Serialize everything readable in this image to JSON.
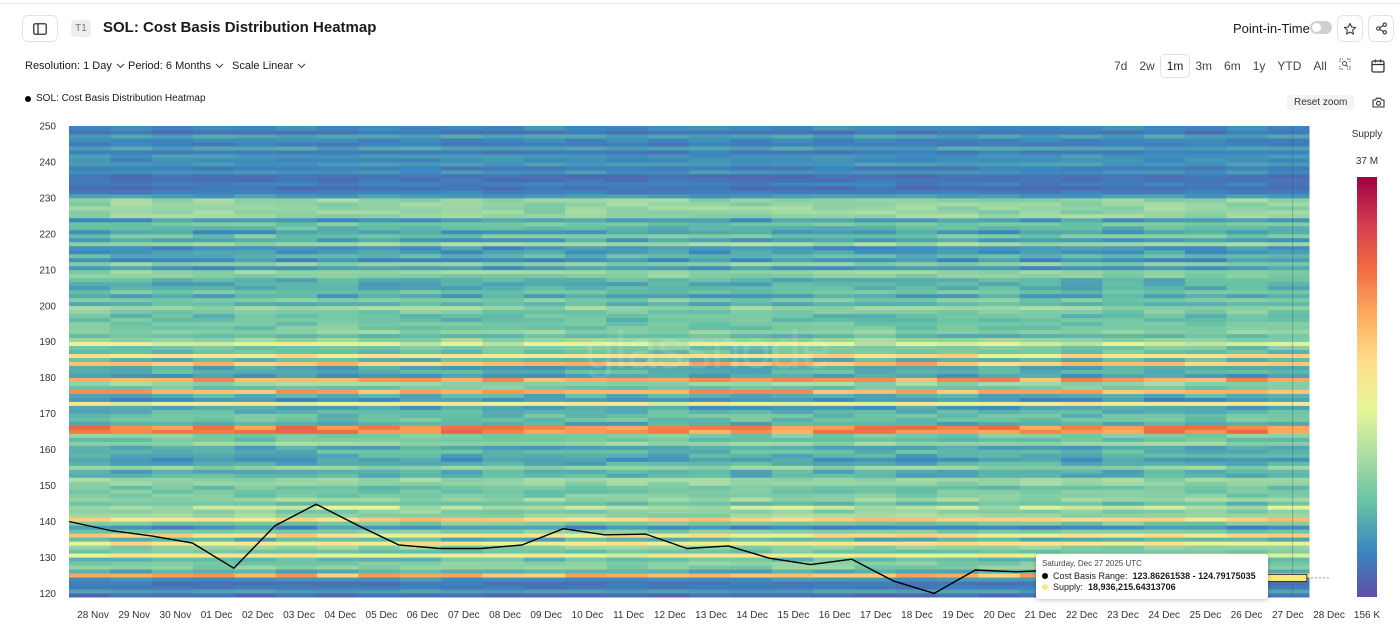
{
  "header": {
    "badge": "T1",
    "title": "SOL: Cost Basis Distribution Heatmap",
    "point_in_time_label": "Point-in-Time",
    "point_in_time_on": false,
    "icons": [
      "sidebar-icon",
      "star-icon",
      "share-icon"
    ]
  },
  "toolbar": {
    "resolution_label": "Resolution: 1 Day",
    "period_label": "Period: 6 Months",
    "scale_label": "Scale Linear",
    "ranges": [
      "7d",
      "2w",
      "1m",
      "3m",
      "6m",
      "1y",
      "YTD",
      "All"
    ],
    "active_range": "1m",
    "icons": [
      "zoom-select-icon",
      "calendar-icon"
    ]
  },
  "chart_header": {
    "legend_label": "SOL: Cost Basis Distribution Heatmap",
    "reset_zoom_label": "Reset zoom",
    "icons": [
      "camera-icon"
    ]
  },
  "colors": {
    "scale": [
      "#5f50a6",
      "#3b87bf",
      "#66c1a5",
      "#aadca4",
      "#e6f598",
      "#fee08b",
      "#fdae61",
      "#f36d43",
      "#d33d4f",
      "#9e0142"
    ],
    "line": "#000000",
    "tooltip_supply_dot": "#f7e97b"
  },
  "chart_data": {
    "type": "heatmap",
    "title": "SOL: Cost Basis Distribution Heatmap",
    "x_categories": [
      "28 Nov",
      "29 Nov",
      "30 Nov",
      "01 Dec",
      "02 Dec",
      "03 Dec",
      "04 Dec",
      "05 Dec",
      "06 Dec",
      "07 Dec",
      "08 Dec",
      "09 Dec",
      "10 Dec",
      "11 Dec",
      "12 Dec",
      "13 Dec",
      "14 Dec",
      "15 Dec",
      "16 Dec",
      "17 Dec",
      "18 Dec",
      "19 Dec",
      "20 Dec",
      "21 Dec",
      "22 Dec",
      "23 Dec",
      "24 Dec",
      "25 Dec",
      "26 Dec",
      "27 Dec",
      "28 Dec"
    ],
    "y_ticks": [
      120,
      130,
      140,
      150,
      160,
      170,
      180,
      190,
      200,
      210,
      220,
      230,
      240,
      250
    ],
    "ylim": [
      119,
      250
    ],
    "price_series": {
      "name": "SOL: Cost Basis Distribution Heatmap",
      "values": [
        140,
        137.5,
        136,
        134,
        127,
        138.8,
        144.8,
        139,
        133.5,
        132.5,
        132.5,
        133.5,
        138,
        136.3,
        136.5,
        132.5,
        133.2,
        129.8,
        128,
        129.5,
        123.5,
        120,
        126.5,
        126,
        126.5
      ]
    },
    "supply_bands": [
      {
        "low": 124.5,
        "high": 126,
        "strength": 0.72
      },
      {
        "low": 130,
        "high": 131.5,
        "strength": 0.55
      },
      {
        "low": 133,
        "high": 134,
        "strength": 0.58
      },
      {
        "low": 136,
        "high": 137,
        "strength": 0.62
      },
      {
        "low": 140,
        "high": 141.5,
        "strength": 0.66
      },
      {
        "low": 143.5,
        "high": 144.5,
        "strength": 0.45
      },
      {
        "low": 164.5,
        "high": 166.5,
        "strength": 0.8
      },
      {
        "low": 168.5,
        "high": 169.5,
        "strength": 0.78
      },
      {
        "low": 172,
        "high": 173,
        "strength": 0.55
      },
      {
        "low": 176,
        "high": 177,
        "strength": 0.74
      },
      {
        "low": 179,
        "high": 180,
        "strength": 0.76
      },
      {
        "low": 183.5,
        "high": 184.5,
        "strength": 0.7
      },
      {
        "low": 185.5,
        "high": 186.5,
        "strength": 0.6
      },
      {
        "low": 189,
        "high": 190.5,
        "strength": 0.5
      }
    ],
    "colorbar": {
      "label": "Supply",
      "max_label": "37 M",
      "min_label": "156 K"
    },
    "tooltip": {
      "date": "Saturday, Dec 27 2025 UTC",
      "range_label": "Cost Basis Range:",
      "range_value": "123.86261538 - 124.79175035",
      "supply_label": "Supply:",
      "supply_value": "18,936,215.64313706"
    },
    "watermark": "glassnode"
  }
}
